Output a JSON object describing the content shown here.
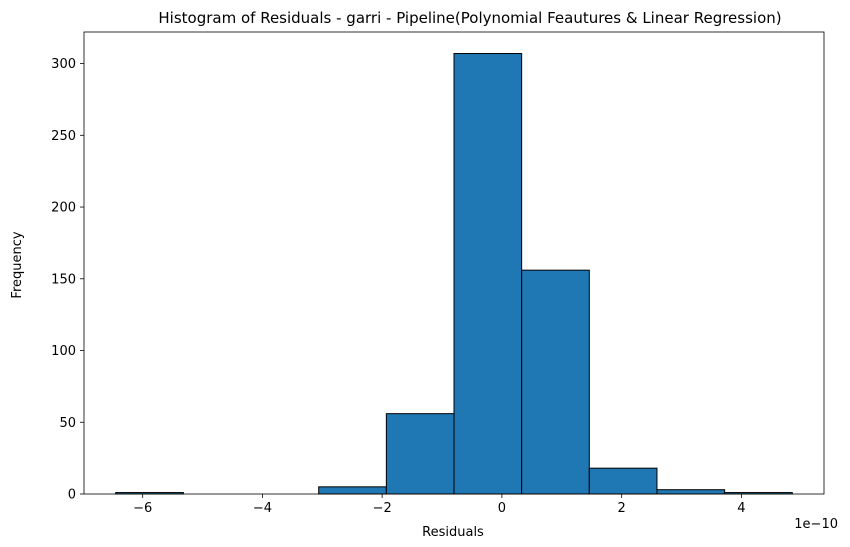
{
  "chart_data": {
    "type": "bar",
    "title": "Histogram of Residuals - garri  - Pipeline(Polynomial Feautures & Linear Regression)",
    "xlabel": "Residuals",
    "ylabel": "Frequency",
    "x_offset_text": "1e−10",
    "bin_edges": [
      -6.45,
      -5.32,
      -4.19,
      -3.06,
      -1.93,
      -0.8,
      0.33,
      1.46,
      2.59,
      3.72,
      4.85
    ],
    "values": [
      1,
      0,
      0,
      5,
      56,
      307,
      156,
      18,
      3,
      1
    ],
    "xlim": [
      -6.98,
      5.38
    ],
    "ylim": [
      0,
      322
    ],
    "xticks": [
      -6,
      -4,
      -2,
      0,
      2,
      4
    ],
    "xtick_labels": [
      "−6",
      "−4",
      "−2",
      "0",
      "2",
      "4"
    ],
    "yticks": [
      0,
      50,
      100,
      150,
      200,
      250,
      300
    ],
    "ytick_labels": [
      "0",
      "50",
      "100",
      "150",
      "200",
      "250",
      "300"
    ],
    "bar_color": "#1f77b4",
    "edge_color": "#000000",
    "grid": false
  }
}
